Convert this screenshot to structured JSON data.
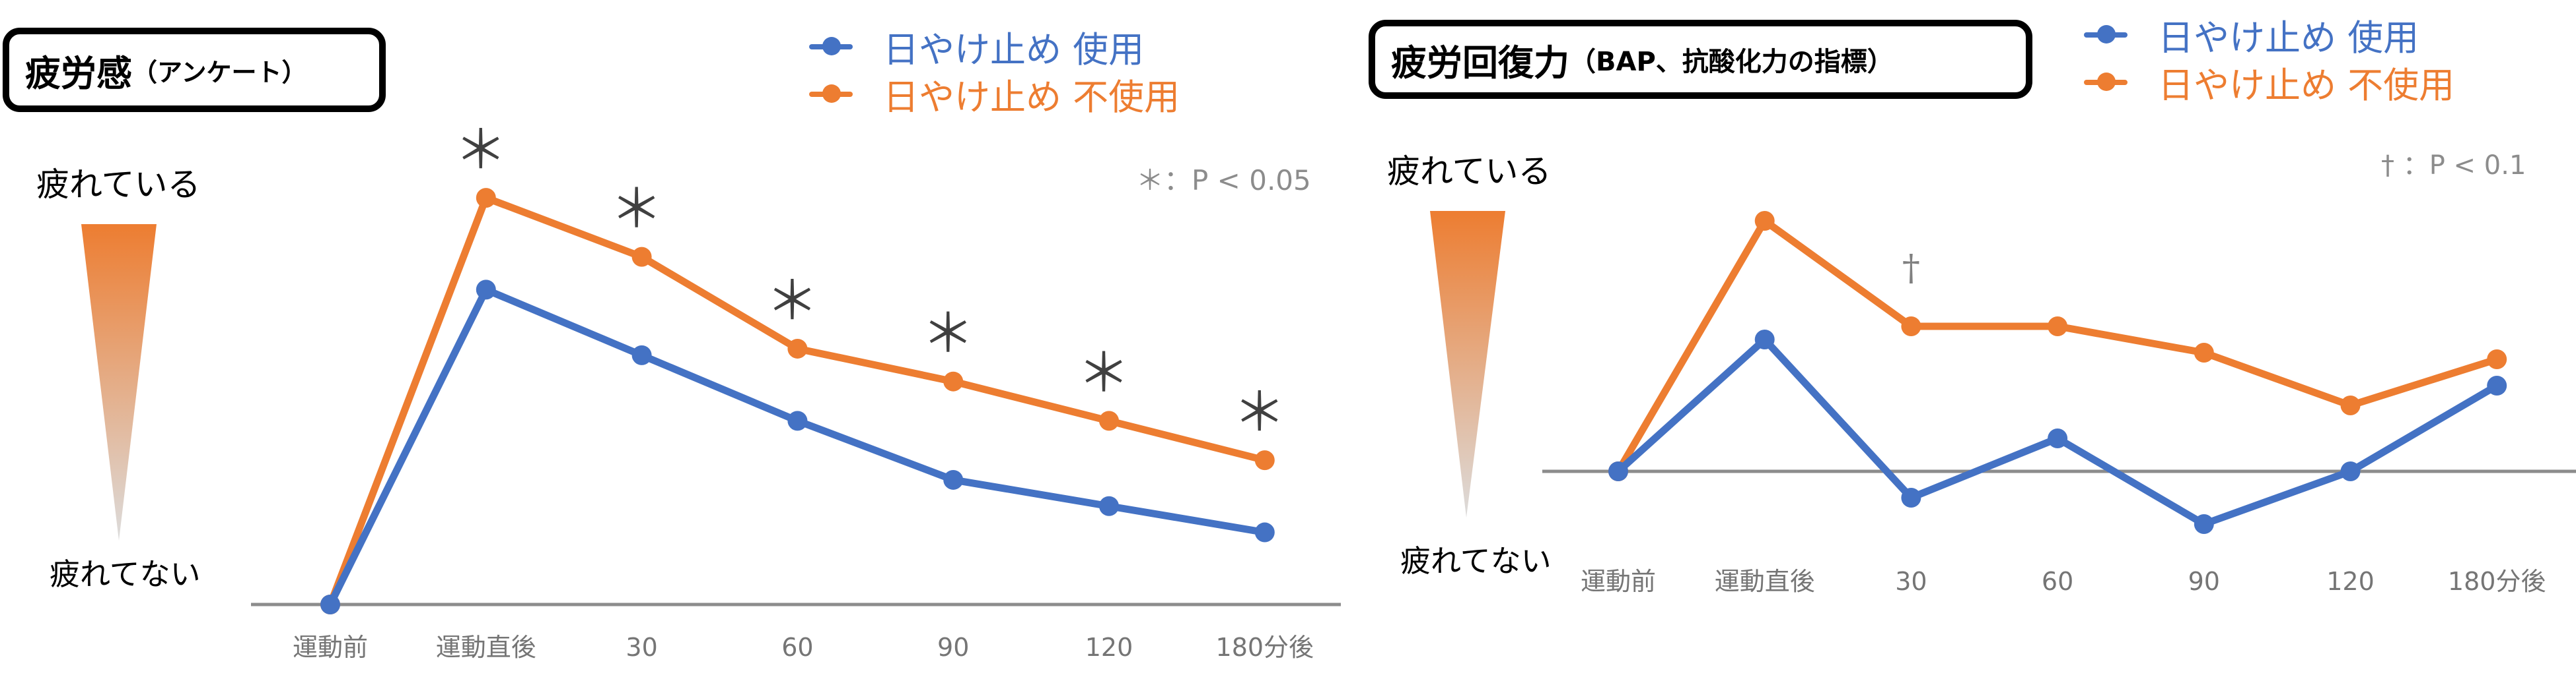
{
  "colors": {
    "blue": "#4472C4",
    "orange": "#ED7D31",
    "axis": "#8c8c8c",
    "tick_text": "#757575",
    "note_text": "#8c8c8c"
  },
  "left_panel": {
    "title_main": "疲労感",
    "title_sub": "（アンケート）",
    "legend": [
      {
        "label": "日やけ止め 使用",
        "color": "#4472C4"
      },
      {
        "label": "日やけ止め 不使用",
        "color": "#ED7D31"
      }
    ],
    "note": "＊：P < 0.05",
    "y_top_label": "疲れている",
    "y_bottom_label": "疲れてない"
  },
  "right_panel": {
    "title_main": "疲労回復力",
    "title_sub": "（BAP、抗酸化力の指標）",
    "legend": [
      {
        "label": "日やけ止め 使用",
        "color": "#4472C4"
      },
      {
        "label": "日やけ止め 不使用",
        "color": "#ED7D31"
      }
    ],
    "note": "† ：P < 0.1",
    "y_top_label": "疲れている",
    "y_bottom_label": "疲れてない"
  },
  "chart_data": [
    {
      "type": "line",
      "title": "疲労感（アンケート）",
      "xlabel": "",
      "ylabel": "疲れてない → 疲れている (relative)",
      "categories": [
        "運動前",
        "運動直後",
        "30",
        "60",
        "90",
        "120",
        "180分後"
      ],
      "series": [
        {
          "name": "日やけ止め 使用",
          "color": "#4472C4",
          "values": [
            0,
            48,
            38,
            28,
            19,
            15,
            11
          ]
        },
        {
          "name": "日やけ止め 不使用",
          "color": "#ED7D31",
          "values": [
            0,
            62,
            53,
            39,
            34,
            28,
            22
          ]
        }
      ],
      "significance": {
        "marker": "＊",
        "meaning": "P < 0.05",
        "categories": [
          "運動直後",
          "30",
          "60",
          "90",
          "120",
          "180分後"
        ]
      },
      "ylim": [
        0,
        70
      ],
      "grid": false,
      "legend_position": "top"
    },
    {
      "type": "line",
      "title": "疲労回復力（BAP、抗酸化力の指標）",
      "xlabel": "",
      "ylabel": "疲れてない → 疲れている (relative change)",
      "categories": [
        "運動前",
        "運動直後",
        "30",
        "60",
        "90",
        "120",
        "180分後"
      ],
      "series": [
        {
          "name": "日やけ止め 使用",
          "color": "#4472C4",
          "values": [
            0,
            20,
            -4,
            5,
            -8,
            0,
            13
          ]
        },
        {
          "name": "日やけ止め 不使用",
          "color": "#ED7D31",
          "values": [
            0,
            38,
            22,
            22,
            18,
            10,
            17
          ]
        }
      ],
      "significance": {
        "marker": "†",
        "meaning": "P < 0.1",
        "categories": [
          "30"
        ]
      },
      "ylim": [
        -12,
        42
      ],
      "grid": false,
      "legend_position": "top-right"
    }
  ]
}
